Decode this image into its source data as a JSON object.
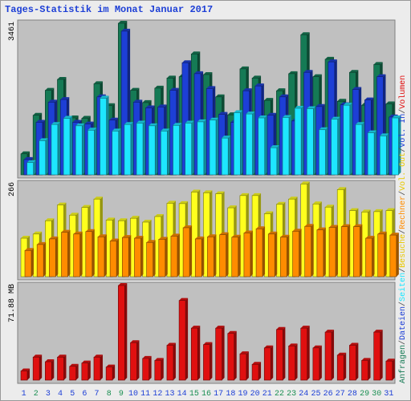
{
  "title": "Tages-Statistik im Monat Januar 2017",
  "colors": {
    "panel_bg": "#c0c0c0",
    "anfragen": "#157a55",
    "dateien": "#1d3fd6",
    "seiten": "#1ee6ff",
    "besuche": "#ffff1e",
    "rechner": "#ff8c00",
    "volumen": "#e01010",
    "weekday_label": "#1d3fd6",
    "weekend_label": "#1a8f52"
  },
  "legend_right": [
    {
      "text": "Anfragen",
      "color": "#157a55"
    },
    {
      "text": "/",
      "color": "#555555"
    },
    {
      "text": "Dateien",
      "color": "#1d3fd6"
    },
    {
      "text": "/",
      "color": "#555555"
    },
    {
      "text": "Seiten",
      "color": "#1ee6ff"
    },
    {
      "text": "/",
      "color": "#555555"
    },
    {
      "text": "Besuche",
      "color": "#e8c800"
    },
    {
      "text": "/",
      "color": "#555555"
    },
    {
      "text": "Rechner",
      "color": "#ff8c00"
    },
    {
      "text": "/",
      "color": "#555555"
    },
    {
      "text": "Vol. Out",
      "color": "#e8c800"
    },
    {
      "text": "/",
      "color": "#555555"
    },
    {
      "text": "Vol. In",
      "color": "#1d3fd6"
    },
    {
      "text": "/",
      "color": "#555555"
    },
    {
      "text": "Volumen",
      "color": "#e01010"
    }
  ],
  "chart_data": [
    {
      "type": "bar",
      "panel": "top",
      "ylabel": "3461",
      "ylim": [
        0,
        3461
      ],
      "categories": [
        "1",
        "2",
        "3",
        "4",
        "5",
        "6",
        "7",
        "8",
        "9",
        "10",
        "11",
        "12",
        "13",
        "14",
        "15",
        "16",
        "17",
        "18",
        "19",
        "20",
        "21",
        "22",
        "23",
        "24",
        "25",
        "26",
        "27",
        "28",
        "29",
        "30",
        "31"
      ],
      "weekend": [
        1,
        7,
        8,
        14,
        15,
        21,
        22,
        28,
        29
      ],
      "series": [
        {
          "name": "Anfragen",
          "color": "#157a55",
          "values": [
            480,
            1360,
            1930,
            2180,
            1300,
            1290,
            2080,
            1580,
            3461,
            1930,
            1650,
            1980,
            2210,
            2240,
            2760,
            2290,
            1780,
            1370,
            2420,
            2210,
            1700,
            1920,
            2310,
            3200,
            2240,
            2640,
            1680,
            2340,
            1590,
            2520,
            1620
          ]
        },
        {
          "name": "Dateien",
          "color": "#1d3fd6",
          "values": [
            350,
            1200,
            1660,
            1720,
            1200,
            1160,
            1780,
            1250,
            3281,
            1660,
            1530,
            1550,
            1930,
            2560,
            2310,
            1970,
            1380,
            1200,
            1920,
            2030,
            1360,
            1780,
            1230,
            2340,
            1560,
            2580,
            1600,
            1950,
            1710,
            2240,
            1320
          ]
        },
        {
          "name": "Seiten",
          "color": "#1ee6ff",
          "values": [
            280,
            780,
            1150,
            1290,
            1120,
            1020,
            1750,
            1000,
            1150,
            1180,
            1120,
            1000,
            1130,
            1180,
            1210,
            1250,
            840,
            1420,
            1390,
            1300,
            620,
            1310,
            1520,
            1510,
            1030,
            1270,
            1590,
            1150,
            960,
            890,
            1300
          ]
        }
      ]
    },
    {
      "type": "bar",
      "panel": "middle",
      "ylabel": "266",
      "ylim": [
        0,
        266
      ],
      "categories": [
        "1",
        "2",
        "3",
        "4",
        "5",
        "6",
        "7",
        "8",
        "9",
        "10",
        "11",
        "12",
        "13",
        "14",
        "15",
        "16",
        "17",
        "18",
        "19",
        "20",
        "21",
        "22",
        "23",
        "24",
        "25",
        "26",
        "27",
        "28",
        "29",
        "30",
        "31"
      ],
      "series": [
        {
          "name": "Besuche",
          "color": "#ffff1e",
          "values": [
            110,
            122,
            160,
            205,
            176,
            198,
            222,
            162,
            160,
            167,
            156,
            172,
            210,
            209,
            242,
            240,
            237,
            197,
            232,
            232,
            180,
            207,
            222,
            265,
            208,
            199,
            249,
            189,
            185,
            186,
            189
          ]
        },
        {
          "name": "Rechner",
          "color": "#ff8c00",
          "values": [
            75,
            92,
            108,
            127,
            122,
            129,
            114,
            102,
            112,
            110,
            98,
            107,
            116,
            140,
            108,
            114,
            120,
            113,
            125,
            137,
            122,
            113,
            130,
            144,
            134,
            141,
            143,
            143,
            110,
            122,
            119
          ]
        }
      ]
    },
    {
      "type": "bar",
      "panel": "bottom",
      "ylabel": "71.88 MB",
      "ylim": [
        0,
        71.88
      ],
      "categories": [
        "1",
        "2",
        "3",
        "4",
        "5",
        "6",
        "7",
        "8",
        "9",
        "10",
        "11",
        "12",
        "13",
        "14",
        "15",
        "16",
        "17",
        "18",
        "19",
        "20",
        "21",
        "22",
        "23",
        "24",
        "25",
        "26",
        "27",
        "28",
        "29",
        "30",
        "31"
      ],
      "series": [
        {
          "name": "Volumen",
          "color": "#e01010",
          "values": [
            7.0,
            17.5,
            14.0,
            17.5,
            10.5,
            13.0,
            17.5,
            10.0,
            71.88,
            28.5,
            16.5,
            15.0,
            26.5,
            60.5,
            39.5,
            27.0,
            39.5,
            35.5,
            20.0,
            12.0,
            24.5,
            38.5,
            26.0,
            39.5,
            24.5,
            36.5,
            19.0,
            26.5,
            15.0,
            36.5,
            14.5
          ]
        }
      ]
    }
  ]
}
